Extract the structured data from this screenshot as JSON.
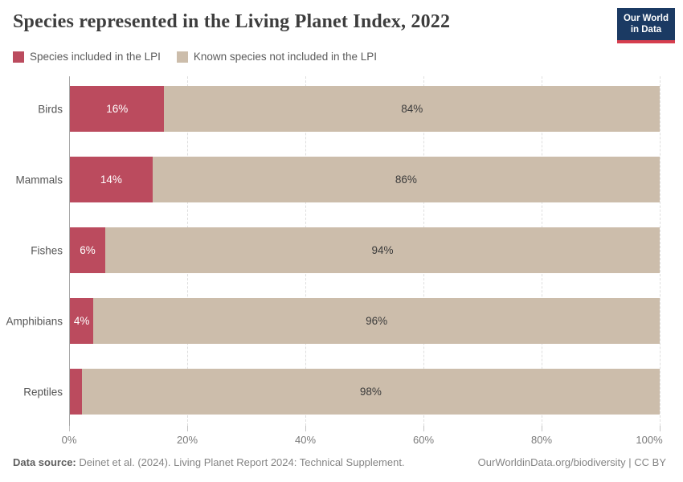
{
  "header": {
    "title": "Species represented in the Living Planet Index, 2022",
    "logo": {
      "line1": "Our World",
      "line2": "in Data",
      "bg": "#1b3a63",
      "stripe": "#d63e4e"
    }
  },
  "chart_data": {
    "type": "bar",
    "variant": "horizontal-stacked",
    "title": "Species represented in the Living Planet Index, 2022",
    "categories": [
      "Birds",
      "Mammals",
      "Fishes",
      "Amphibians",
      "Reptiles"
    ],
    "series": [
      {
        "name": "Species included in the LPI",
        "color": "#bb4b5e",
        "label_color": "#ffffff",
        "values": [
          16,
          14,
          6,
          4,
          2
        ],
        "labels": [
          "16%",
          "14%",
          "6%",
          "4%",
          ""
        ]
      },
      {
        "name": "Known species not included in the LPI",
        "color": "#ccbdab",
        "label_color": "#3b3b3b",
        "values": [
          84,
          86,
          94,
          96,
          98
        ],
        "labels": [
          "84%",
          "86%",
          "94%",
          "96%",
          "98%"
        ]
      }
    ],
    "xlim": [
      0,
      100
    ],
    "x_ticks": [
      {
        "value": 0,
        "label": "0%"
      },
      {
        "value": 20,
        "label": "20%"
      },
      {
        "value": 40,
        "label": "40%"
      },
      {
        "value": 60,
        "label": "60%"
      },
      {
        "value": 80,
        "label": "80%"
      },
      {
        "value": 100,
        "label": "100%"
      }
    ],
    "grid": "dashed-vertical",
    "legend_position": "top-left"
  },
  "footer": {
    "source_prefix": "Data source:",
    "source_text": " Deinet et al. (2024). Living Planet Report 2024: Technical Supplement.",
    "right_text": "OurWorldinData.org/biodiversity | CC BY"
  }
}
